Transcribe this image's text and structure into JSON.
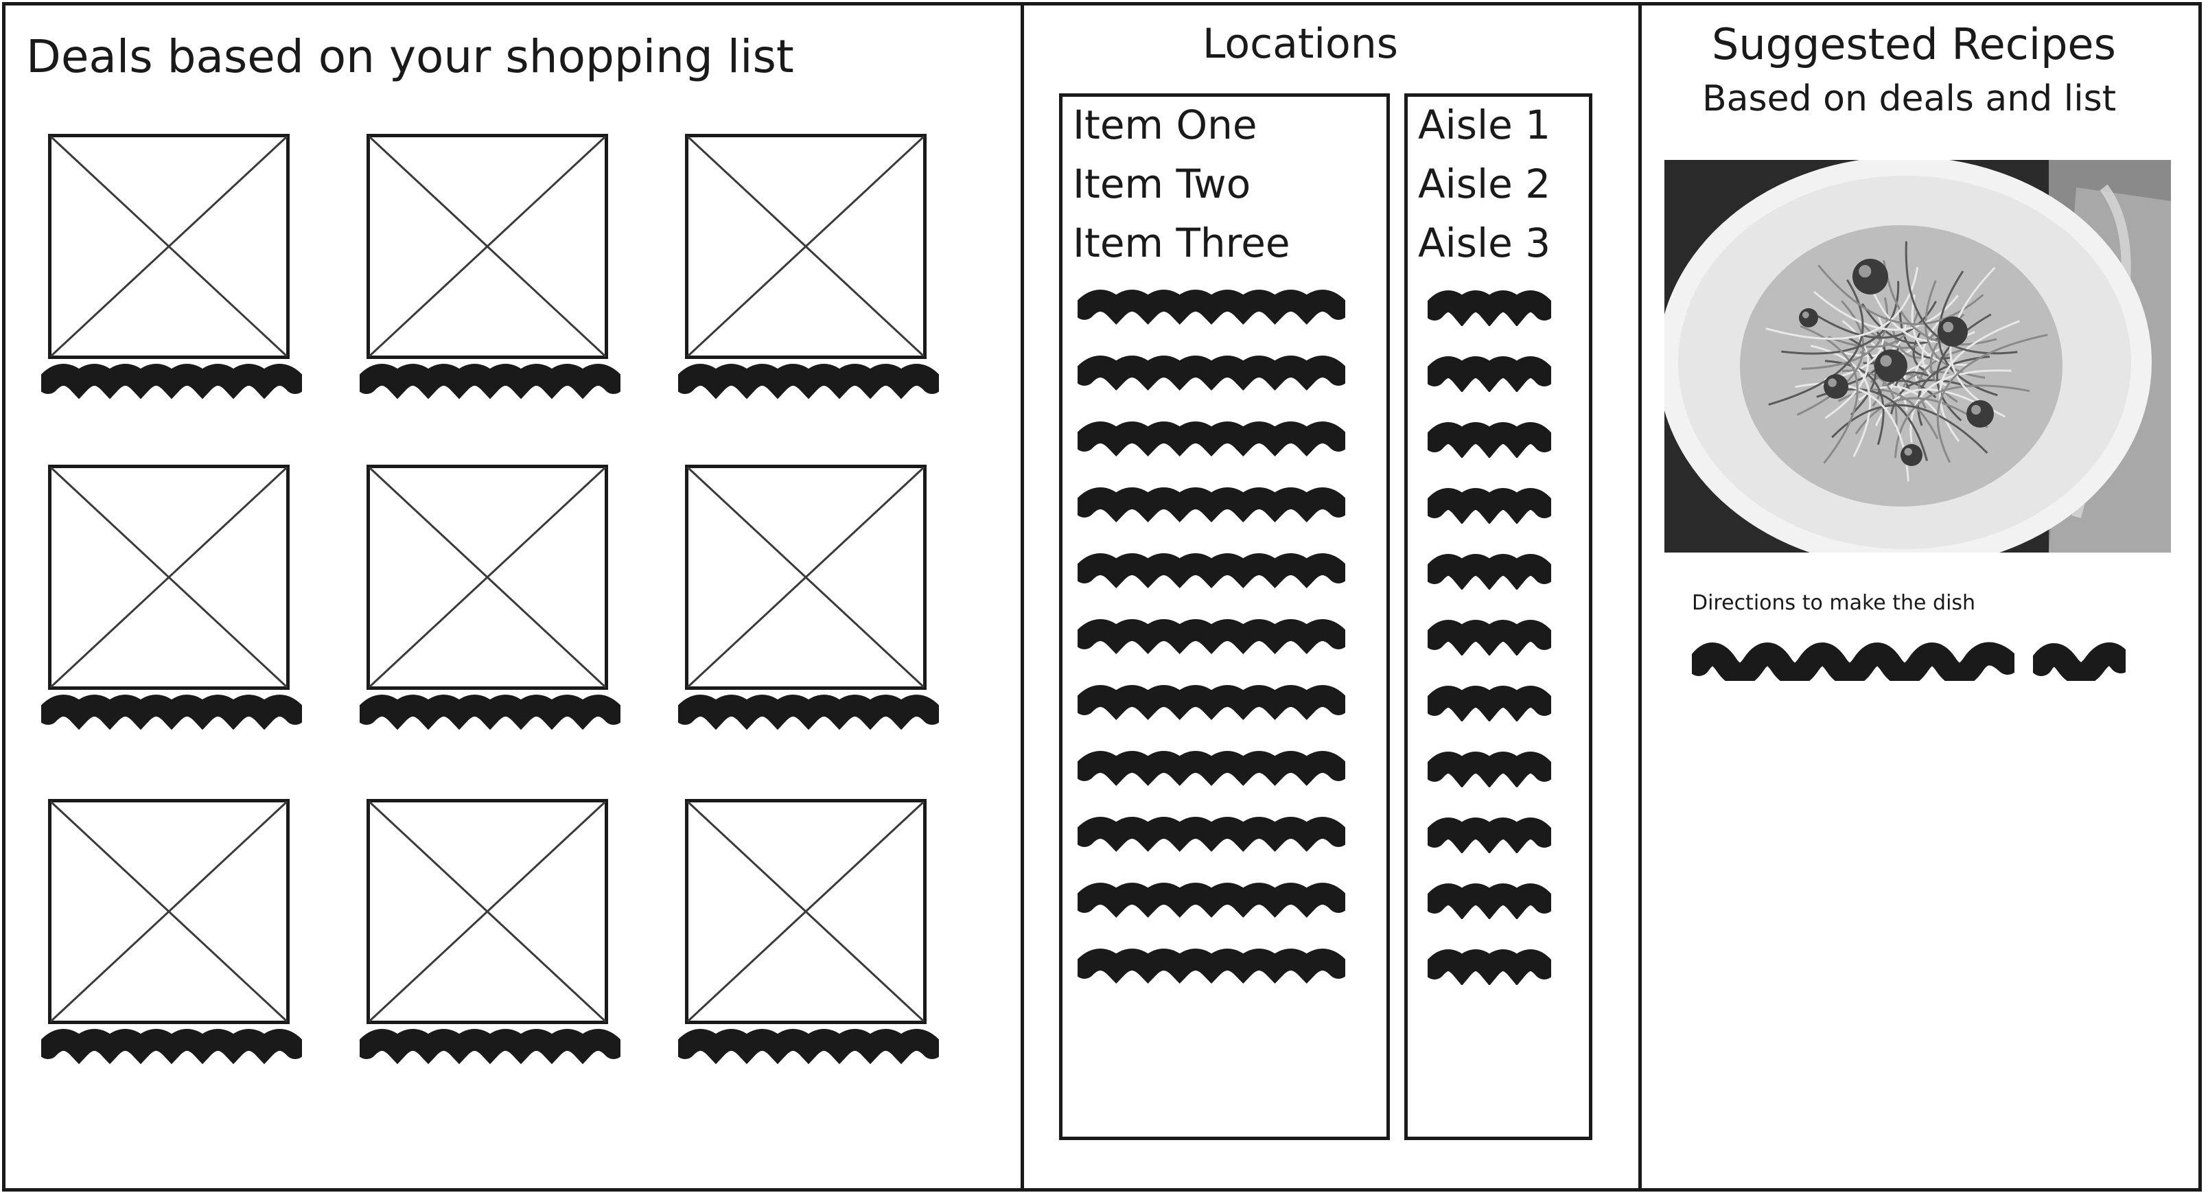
{
  "deals": {
    "title": "Deals based on your shopping list",
    "items": [
      {
        "image": "image-placeholder"
      },
      {
        "image": "image-placeholder"
      },
      {
        "image": "image-placeholder"
      },
      {
        "image": "image-placeholder"
      },
      {
        "image": "image-placeholder"
      },
      {
        "image": "image-placeholder"
      },
      {
        "image": "image-placeholder"
      },
      {
        "image": "image-placeholder"
      },
      {
        "image": "image-placeholder"
      }
    ]
  },
  "locations": {
    "title": "Locations",
    "items": [
      {
        "name": "Item One",
        "aisle": "Aisle 1"
      },
      {
        "name": "Item Two",
        "aisle": "Aisle 2"
      },
      {
        "name": "Item Three",
        "aisle": "Aisle 3"
      }
    ],
    "placeholder_row_count": 11
  },
  "recipes": {
    "title": "Suggested Recipes",
    "subtitle": "Based on deals and list",
    "photo": "pasta-dish-photo",
    "directions_label": "Directions to make the dish"
  },
  "colors": {
    "ink": "#1a1a1a",
    "placeholder_line": "#3a3a3a",
    "background": "#ffffff"
  }
}
